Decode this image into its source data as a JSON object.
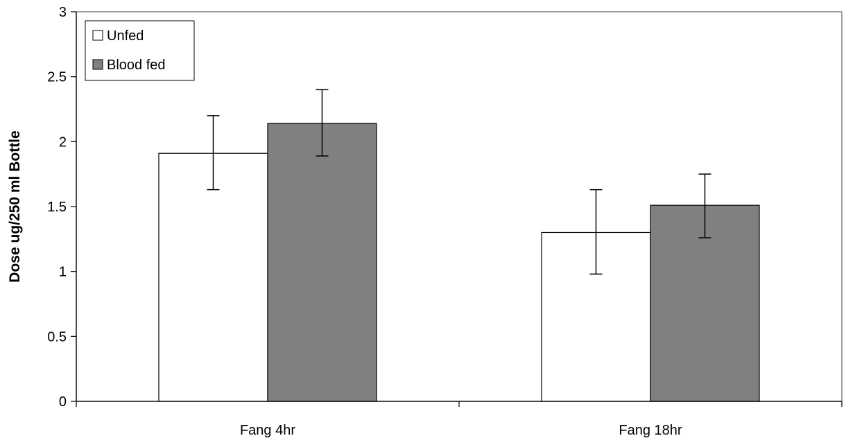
{
  "chart_data": {
    "type": "bar",
    "title": "",
    "xlabel": "",
    "ylabel": "Dose ug/250 ml Bottle",
    "ylim": [
      0,
      3
    ],
    "yticks": [
      0,
      0.5,
      1,
      1.5,
      2,
      2.5,
      3
    ],
    "ytick_labels": [
      "0",
      "0.5",
      "1",
      "1.5",
      "2",
      "2.5",
      "3"
    ],
    "categories": [
      "Fang 4hr",
      "Fang 18hr"
    ],
    "series": [
      {
        "name": "Unfed",
        "color": "#ffffff",
        "values": [
          1.91,
          1.3
        ],
        "error_low": [
          1.63,
          0.98
        ],
        "error_high": [
          2.2,
          1.63
        ]
      },
      {
        "name": "Blood fed",
        "color": "#808080",
        "values": [
          2.14,
          1.51
        ],
        "error_low": [
          1.89,
          1.26
        ],
        "error_high": [
          2.4,
          1.75
        ]
      }
    ],
    "grid": false,
    "legend_position": "top-left"
  }
}
